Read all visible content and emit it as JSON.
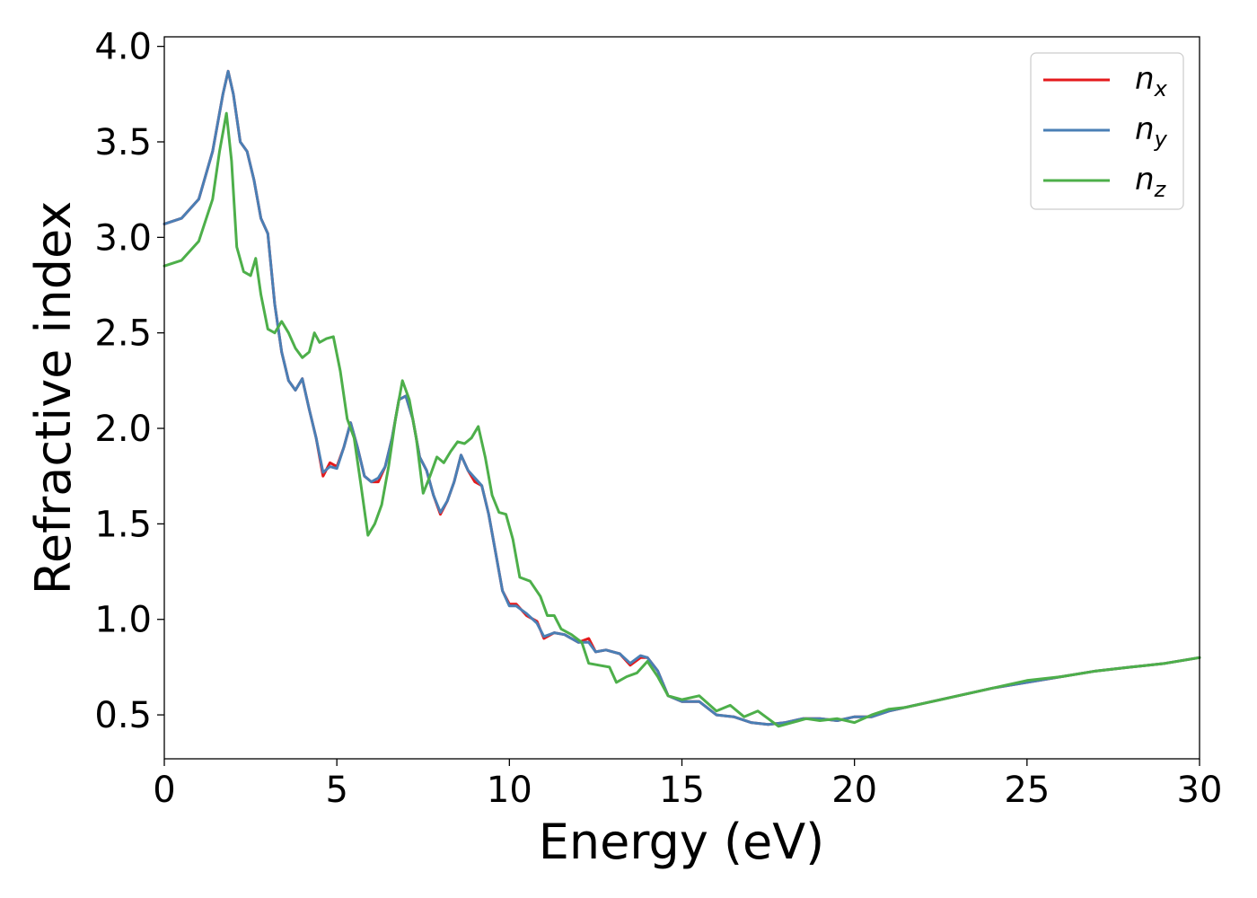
{
  "chart_data": {
    "type": "line",
    "xlabel": "Energy (eV)",
    "ylabel": "Refractive index",
    "xlim": [
      0,
      30
    ],
    "ylim": [
      0.27,
      4.05
    ],
    "xticks": [
      "0",
      "5",
      "10",
      "15",
      "20",
      "25",
      "30"
    ],
    "yticks": [
      "0.5",
      "1.0",
      "1.5",
      "2.0",
      "2.5",
      "3.0",
      "3.5",
      "4.0"
    ],
    "grid": false,
    "legend_position": "top-right",
    "series": [
      {
        "name": "n",
        "subscript": "x",
        "color": "#e41a1c",
        "points": [
          [
            0,
            3.07
          ],
          [
            0.5,
            3.1
          ],
          [
            1.0,
            3.2
          ],
          [
            1.4,
            3.45
          ],
          [
            1.7,
            3.75
          ],
          [
            1.85,
            3.87
          ],
          [
            2.0,
            3.75
          ],
          [
            2.2,
            3.5
          ],
          [
            2.4,
            3.45
          ],
          [
            2.6,
            3.3
          ],
          [
            2.8,
            3.1
          ],
          [
            3.0,
            3.02
          ],
          [
            3.2,
            2.65
          ],
          [
            3.4,
            2.4
          ],
          [
            3.6,
            2.25
          ],
          [
            3.8,
            2.2
          ],
          [
            4.0,
            2.26
          ],
          [
            4.2,
            2.1
          ],
          [
            4.4,
            1.95
          ],
          [
            4.6,
            1.75
          ],
          [
            4.8,
            1.82
          ],
          [
            5.0,
            1.8
          ],
          [
            5.2,
            1.9
          ],
          [
            5.4,
            2.03
          ],
          [
            5.6,
            1.9
          ],
          [
            5.8,
            1.75
          ],
          [
            6.0,
            1.72
          ],
          [
            6.2,
            1.72
          ],
          [
            6.4,
            1.8
          ],
          [
            6.6,
            1.95
          ],
          [
            6.8,
            2.15
          ],
          [
            7.0,
            2.17
          ],
          [
            7.2,
            2.05
          ],
          [
            7.4,
            1.85
          ],
          [
            7.6,
            1.78
          ],
          [
            7.8,
            1.65
          ],
          [
            8.0,
            1.55
          ],
          [
            8.2,
            1.62
          ],
          [
            8.4,
            1.72
          ],
          [
            8.6,
            1.86
          ],
          [
            8.8,
            1.78
          ],
          [
            9.0,
            1.72
          ],
          [
            9.2,
            1.7
          ],
          [
            9.4,
            1.55
          ],
          [
            9.6,
            1.35
          ],
          [
            9.8,
            1.15
          ],
          [
            10.0,
            1.08
          ],
          [
            10.2,
            1.08
          ],
          [
            10.5,
            1.02
          ],
          [
            10.8,
            0.99
          ],
          [
            11.0,
            0.9
          ],
          [
            11.3,
            0.93
          ],
          [
            11.6,
            0.92
          ],
          [
            12.0,
            0.88
          ],
          [
            12.3,
            0.9
          ],
          [
            12.5,
            0.83
          ],
          [
            12.8,
            0.84
          ],
          [
            13.2,
            0.82
          ],
          [
            13.5,
            0.76
          ],
          [
            13.8,
            0.8
          ],
          [
            14.0,
            0.8
          ],
          [
            14.3,
            0.73
          ],
          [
            14.6,
            0.6
          ],
          [
            15.0,
            0.57
          ],
          [
            15.5,
            0.57
          ],
          [
            16.0,
            0.5
          ],
          [
            16.5,
            0.49
          ],
          [
            17.0,
            0.46
          ],
          [
            17.5,
            0.45
          ],
          [
            18.0,
            0.46
          ],
          [
            18.5,
            0.48
          ],
          [
            19.0,
            0.48
          ],
          [
            19.5,
            0.47
          ],
          [
            20.0,
            0.49
          ],
          [
            20.5,
            0.49
          ],
          [
            21.0,
            0.52
          ],
          [
            22.0,
            0.56
          ],
          [
            23.0,
            0.6
          ],
          [
            24.0,
            0.64
          ],
          [
            25.0,
            0.67
          ],
          [
            26.0,
            0.7
          ],
          [
            27.0,
            0.73
          ],
          [
            28.0,
            0.75
          ],
          [
            29.0,
            0.77
          ],
          [
            30.0,
            0.8
          ]
        ]
      },
      {
        "name": "n",
        "subscript": "y",
        "color": "#4a7fb5",
        "points": [
          [
            0,
            3.07
          ],
          [
            0.5,
            3.1
          ],
          [
            1.0,
            3.2
          ],
          [
            1.4,
            3.45
          ],
          [
            1.7,
            3.75
          ],
          [
            1.85,
            3.87
          ],
          [
            2.0,
            3.75
          ],
          [
            2.2,
            3.5
          ],
          [
            2.4,
            3.45
          ],
          [
            2.6,
            3.3
          ],
          [
            2.8,
            3.1
          ],
          [
            3.0,
            3.02
          ],
          [
            3.2,
            2.65
          ],
          [
            3.4,
            2.4
          ],
          [
            3.6,
            2.25
          ],
          [
            3.8,
            2.2
          ],
          [
            4.0,
            2.26
          ],
          [
            4.2,
            2.1
          ],
          [
            4.4,
            1.95
          ],
          [
            4.6,
            1.77
          ],
          [
            4.8,
            1.8
          ],
          [
            5.0,
            1.79
          ],
          [
            5.2,
            1.9
          ],
          [
            5.4,
            2.03
          ],
          [
            5.6,
            1.9
          ],
          [
            5.8,
            1.75
          ],
          [
            6.0,
            1.72
          ],
          [
            6.2,
            1.74
          ],
          [
            6.4,
            1.8
          ],
          [
            6.6,
            1.95
          ],
          [
            6.8,
            2.15
          ],
          [
            7.0,
            2.17
          ],
          [
            7.2,
            2.05
          ],
          [
            7.4,
            1.85
          ],
          [
            7.6,
            1.78
          ],
          [
            7.8,
            1.65
          ],
          [
            8.0,
            1.56
          ],
          [
            8.2,
            1.62
          ],
          [
            8.4,
            1.72
          ],
          [
            8.6,
            1.86
          ],
          [
            8.8,
            1.78
          ],
          [
            9.0,
            1.74
          ],
          [
            9.2,
            1.7
          ],
          [
            9.4,
            1.55
          ],
          [
            9.6,
            1.35
          ],
          [
            9.8,
            1.15
          ],
          [
            10.0,
            1.07
          ],
          [
            10.2,
            1.07
          ],
          [
            10.5,
            1.03
          ],
          [
            10.8,
            0.98
          ],
          [
            11.0,
            0.91
          ],
          [
            11.3,
            0.93
          ],
          [
            11.6,
            0.92
          ],
          [
            12.0,
            0.88
          ],
          [
            12.3,
            0.88
          ],
          [
            12.5,
            0.83
          ],
          [
            12.8,
            0.84
          ],
          [
            13.2,
            0.82
          ],
          [
            13.5,
            0.77
          ],
          [
            13.8,
            0.81
          ],
          [
            14.0,
            0.8
          ],
          [
            14.3,
            0.73
          ],
          [
            14.6,
            0.6
          ],
          [
            15.0,
            0.57
          ],
          [
            15.5,
            0.57
          ],
          [
            16.0,
            0.5
          ],
          [
            16.5,
            0.49
          ],
          [
            17.0,
            0.46
          ],
          [
            17.5,
            0.45
          ],
          [
            18.0,
            0.46
          ],
          [
            18.5,
            0.48
          ],
          [
            19.0,
            0.48
          ],
          [
            19.5,
            0.47
          ],
          [
            20.0,
            0.49
          ],
          [
            20.5,
            0.49
          ],
          [
            21.0,
            0.52
          ],
          [
            22.0,
            0.56
          ],
          [
            23.0,
            0.6
          ],
          [
            24.0,
            0.64
          ],
          [
            25.0,
            0.67
          ],
          [
            26.0,
            0.7
          ],
          [
            27.0,
            0.73
          ],
          [
            28.0,
            0.75
          ],
          [
            29.0,
            0.77
          ],
          [
            30.0,
            0.8
          ]
        ]
      },
      {
        "name": "n",
        "subscript": "z",
        "color": "#4daf4a",
        "points": [
          [
            0,
            2.85
          ],
          [
            0.5,
            2.88
          ],
          [
            1.0,
            2.98
          ],
          [
            1.4,
            3.2
          ],
          [
            1.6,
            3.45
          ],
          [
            1.8,
            3.65
          ],
          [
            1.95,
            3.4
          ],
          [
            2.1,
            2.95
          ],
          [
            2.3,
            2.82
          ],
          [
            2.5,
            2.8
          ],
          [
            2.65,
            2.89
          ],
          [
            2.8,
            2.7
          ],
          [
            3.0,
            2.52
          ],
          [
            3.2,
            2.5
          ],
          [
            3.4,
            2.56
          ],
          [
            3.6,
            2.5
          ],
          [
            3.8,
            2.42
          ],
          [
            4.0,
            2.37
          ],
          [
            4.2,
            2.4
          ],
          [
            4.35,
            2.5
          ],
          [
            4.5,
            2.45
          ],
          [
            4.7,
            2.47
          ],
          [
            4.9,
            2.48
          ],
          [
            5.1,
            2.3
          ],
          [
            5.3,
            2.05
          ],
          [
            5.5,
            1.95
          ],
          [
            5.7,
            1.7
          ],
          [
            5.9,
            1.44
          ],
          [
            6.1,
            1.5
          ],
          [
            6.3,
            1.6
          ],
          [
            6.5,
            1.8
          ],
          [
            6.7,
            2.05
          ],
          [
            6.9,
            2.25
          ],
          [
            7.1,
            2.15
          ],
          [
            7.3,
            1.95
          ],
          [
            7.5,
            1.66
          ],
          [
            7.7,
            1.75
          ],
          [
            7.9,
            1.85
          ],
          [
            8.1,
            1.82
          ],
          [
            8.3,
            1.88
          ],
          [
            8.5,
            1.93
          ],
          [
            8.7,
            1.92
          ],
          [
            8.9,
            1.95
          ],
          [
            9.1,
            2.01
          ],
          [
            9.3,
            1.85
          ],
          [
            9.5,
            1.65
          ],
          [
            9.7,
            1.56
          ],
          [
            9.9,
            1.55
          ],
          [
            10.1,
            1.42
          ],
          [
            10.3,
            1.22
          ],
          [
            10.6,
            1.2
          ],
          [
            10.9,
            1.12
          ],
          [
            11.1,
            1.02
          ],
          [
            11.3,
            1.02
          ],
          [
            11.5,
            0.95
          ],
          [
            11.8,
            0.92
          ],
          [
            12.1,
            0.88
          ],
          [
            12.3,
            0.77
          ],
          [
            12.6,
            0.76
          ],
          [
            12.9,
            0.75
          ],
          [
            13.1,
            0.67
          ],
          [
            13.4,
            0.7
          ],
          [
            13.7,
            0.72
          ],
          [
            14.0,
            0.78
          ],
          [
            14.3,
            0.7
          ],
          [
            14.6,
            0.6
          ],
          [
            15.0,
            0.58
          ],
          [
            15.5,
            0.6
          ],
          [
            16.0,
            0.52
          ],
          [
            16.4,
            0.55
          ],
          [
            16.8,
            0.49
          ],
          [
            17.2,
            0.52
          ],
          [
            17.5,
            0.48
          ],
          [
            17.8,
            0.44
          ],
          [
            18.2,
            0.46
          ],
          [
            18.6,
            0.48
          ],
          [
            19.0,
            0.47
          ],
          [
            19.5,
            0.48
          ],
          [
            20.0,
            0.46
          ],
          [
            20.5,
            0.5
          ],
          [
            21.0,
            0.53
          ],
          [
            21.5,
            0.54
          ],
          [
            22.0,
            0.56
          ],
          [
            22.5,
            0.58
          ],
          [
            23.0,
            0.6
          ],
          [
            24.0,
            0.64
          ],
          [
            25.0,
            0.68
          ],
          [
            26.0,
            0.7
          ],
          [
            27.0,
            0.73
          ],
          [
            28.0,
            0.75
          ],
          [
            29.0,
            0.77
          ],
          [
            30.0,
            0.8
          ]
        ]
      }
    ]
  }
}
